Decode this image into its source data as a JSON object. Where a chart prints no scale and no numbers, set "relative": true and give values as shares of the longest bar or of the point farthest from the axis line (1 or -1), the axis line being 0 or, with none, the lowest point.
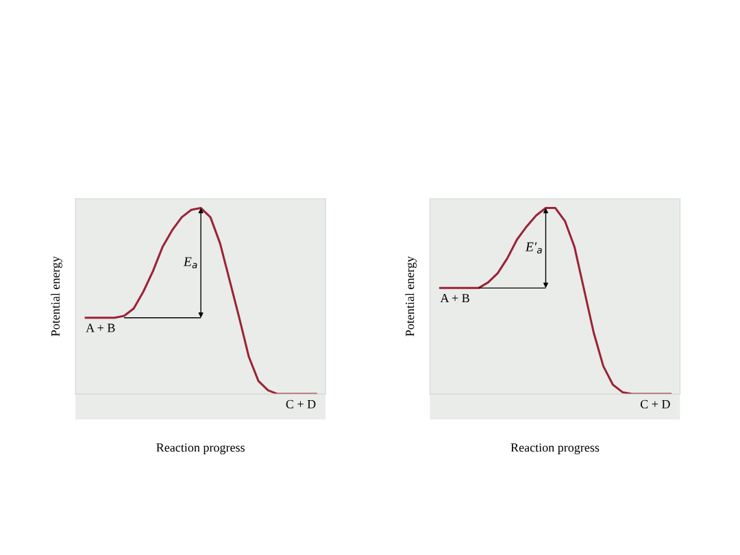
{
  "chart_data": [
    {
      "type": "line",
      "relative": true,
      "xlabel": "Reaction progress",
      "ylabel": "Potential energy",
      "color": "#9b2335",
      "marker": "none",
      "line_style": "solid",
      "grid": false,
      "legend": false,
      "categories": [
        null,
        null,
        null,
        null,
        null,
        null,
        null,
        null,
        null,
        null,
        null,
        null,
        null,
        null,
        null,
        null,
        null,
        null,
        null,
        null,
        null,
        null,
        null,
        null,
        null
      ],
      "values": [
        0.41,
        0.41,
        0.41,
        0.41,
        0.42,
        0.46,
        0.55,
        0.66,
        0.79,
        0.88,
        0.95,
        0.99,
        1.0,
        0.95,
        0.81,
        0.61,
        0.41,
        0.2,
        0.07,
        0.02,
        0,
        0,
        0,
        0,
        0
      ],
      "annotations": [
        "A + B",
        "C + D",
        "E$_{a}$"
      ]
    },
    {
      "type": "line",
      "relative": true,
      "xlabel": "Reaction progress",
      "ylabel": "Potential energy",
      "color": "#9b2335",
      "marker": "none",
      "line_style": "solid",
      "grid": false,
      "legend": false,
      "categories": [
        null,
        null,
        null,
        null,
        null,
        null,
        null,
        null,
        null,
        null,
        null,
        null,
        null,
        null,
        null,
        null,
        null,
        null,
        null,
        null,
        null,
        null,
        null,
        null,
        null
      ],
      "values": [
        0.57,
        0.57,
        0.57,
        0.57,
        0.57,
        0.6,
        0.65,
        0.73,
        0.83,
        0.9,
        0.96,
        1.0,
        1.0,
        0.93,
        0.79,
        0.56,
        0.33,
        0.15,
        0.05,
        0.01,
        0,
        0,
        0,
        0,
        0
      ],
      "annotations": [
        "A + B",
        "C + D",
        "E′$_{a}$"
      ]
    }
  ]
}
